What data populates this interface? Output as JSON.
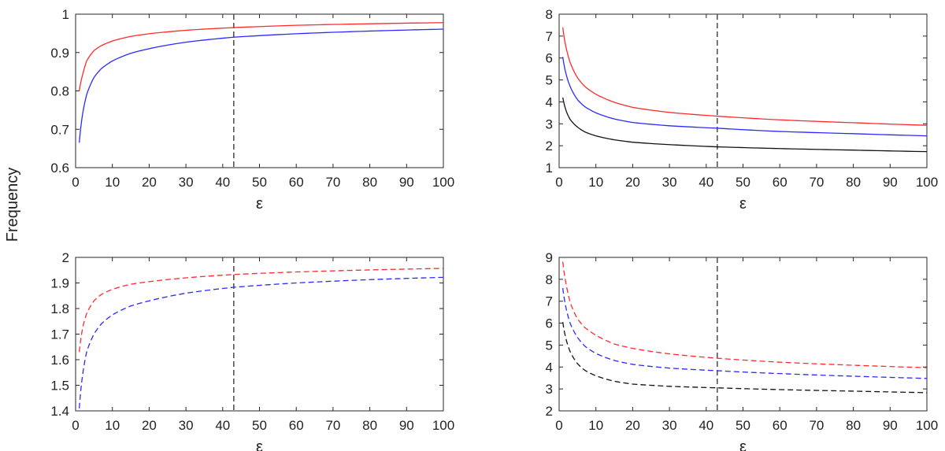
{
  "figure": {
    "ylabel": "Frequency"
  },
  "colors": {
    "red": "#ff2a2a",
    "blue": "#2a2aff",
    "black": "#111111",
    "marker": "#555555",
    "axis": "#262626"
  },
  "chart_data": [
    {
      "type": "line",
      "panel": "top-left",
      "xlabel": "ε",
      "ylabel": "",
      "xlim": [
        0,
        100
      ],
      "ylim": [
        0.6,
        1
      ],
      "xticks": [
        0,
        10,
        20,
        30,
        40,
        50,
        60,
        70,
        80,
        90,
        100
      ],
      "yticks": [
        0.6,
        0.7,
        0.8,
        0.9,
        1
      ],
      "ytick_labels": [
        "0.6",
        "0.7",
        "0.8",
        "0.9",
        "1"
      ],
      "vline": 43,
      "series": [
        {
          "name": "red",
          "color": "red",
          "dash": "solid",
          "x": [
            1,
            2,
            3,
            5,
            7,
            10,
            15,
            20,
            30,
            43,
            60,
            80,
            100
          ],
          "values": [
            0.8,
            0.845,
            0.878,
            0.905,
            0.918,
            0.93,
            0.942,
            0.949,
            0.958,
            0.965,
            0.971,
            0.975,
            0.978
          ]
        },
        {
          "name": "blue",
          "color": "blue",
          "dash": "solid",
          "x": [
            1,
            2,
            3,
            5,
            7,
            10,
            15,
            20,
            30,
            43,
            60,
            80,
            100
          ],
          "values": [
            0.665,
            0.745,
            0.79,
            0.835,
            0.858,
            0.878,
            0.898,
            0.91,
            0.927,
            0.94,
            0.949,
            0.956,
            0.961
          ]
        }
      ]
    },
    {
      "type": "line",
      "panel": "top-right",
      "xlabel": "ε",
      "ylabel": "",
      "xlim": [
        0,
        100
      ],
      "ylim": [
        1,
        8
      ],
      "xticks": [
        0,
        10,
        20,
        30,
        40,
        50,
        60,
        70,
        80,
        90,
        100
      ],
      "yticks": [
        1,
        2,
        3,
        4,
        5,
        6,
        7,
        8
      ],
      "ytick_labels": [
        "1",
        "2",
        "3",
        "4",
        "5",
        "6",
        "7",
        "8"
      ],
      "vline": 43,
      "series": [
        {
          "name": "red",
          "color": "red",
          "dash": "solid",
          "x": [
            1,
            2,
            3,
            5,
            7,
            10,
            15,
            20,
            30,
            43,
            60,
            80,
            100
          ],
          "values": [
            7.4,
            6.4,
            5.8,
            5.1,
            4.7,
            4.35,
            3.98,
            3.75,
            3.52,
            3.35,
            3.18,
            3.05,
            2.93
          ]
        },
        {
          "name": "blue",
          "color": "blue",
          "dash": "solid",
          "x": [
            1,
            2,
            3,
            5,
            7,
            10,
            15,
            20,
            30,
            43,
            60,
            80,
            100
          ],
          "values": [
            6.05,
            5.2,
            4.7,
            4.1,
            3.78,
            3.5,
            3.22,
            3.06,
            2.91,
            2.8,
            2.65,
            2.55,
            2.45
          ]
        },
        {
          "name": "black",
          "color": "black",
          "dash": "solid",
          "x": [
            1,
            2,
            3,
            5,
            7,
            10,
            15,
            20,
            30,
            43,
            60,
            80,
            100
          ],
          "values": [
            4.2,
            3.55,
            3.2,
            2.85,
            2.63,
            2.45,
            2.27,
            2.16,
            2.05,
            1.95,
            1.87,
            1.8,
            1.73
          ]
        }
      ]
    },
    {
      "type": "line",
      "panel": "bottom-left",
      "xlabel": "ε",
      "ylabel": "",
      "xlim": [
        0,
        100
      ],
      "ylim": [
        1.4,
        2
      ],
      "xticks": [
        0,
        10,
        20,
        30,
        40,
        50,
        60,
        70,
        80,
        90,
        100
      ],
      "yticks": [
        1.4,
        1.5,
        1.6,
        1.7,
        1.8,
        1.9,
        2
      ],
      "ytick_labels": [
        "1.4",
        "1.5",
        "1.6",
        "1.7",
        "1.8",
        "1.9",
        "2"
      ],
      "vline": 43,
      "series": [
        {
          "name": "red",
          "color": "red",
          "dash": "dashed",
          "x": [
            1,
            2,
            3,
            5,
            7,
            10,
            15,
            20,
            30,
            43,
            60,
            80,
            100
          ],
          "values": [
            1.63,
            1.73,
            1.78,
            1.83,
            1.855,
            1.875,
            1.895,
            1.905,
            1.92,
            1.933,
            1.943,
            1.951,
            1.957
          ]
        },
        {
          "name": "blue",
          "color": "blue",
          "dash": "dashed",
          "x": [
            1,
            2,
            3,
            5,
            7,
            10,
            15,
            20,
            30,
            43,
            60,
            80,
            100
          ],
          "values": [
            1.41,
            1.55,
            1.63,
            1.7,
            1.74,
            1.775,
            1.81,
            1.83,
            1.86,
            1.883,
            1.9,
            1.913,
            1.922
          ]
        }
      ]
    },
    {
      "type": "line",
      "panel": "bottom-right",
      "xlabel": "ε",
      "ylabel": "",
      "xlim": [
        0,
        100
      ],
      "ylim": [
        2,
        9
      ],
      "xticks": [
        0,
        10,
        20,
        30,
        40,
        50,
        60,
        70,
        80,
        90,
        100
      ],
      "yticks": [
        2,
        3,
        4,
        5,
        6,
        7,
        8,
        9
      ],
      "ytick_labels": [
        "2",
        "3",
        "4",
        "5",
        "6",
        "7",
        "8",
        "9"
      ],
      "vline": 43,
      "series": [
        {
          "name": "red",
          "color": "red",
          "dash": "dashed",
          "x": [
            1,
            2,
            3,
            5,
            7,
            10,
            15,
            20,
            30,
            43,
            60,
            80,
            100
          ],
          "values": [
            8.8,
            7.7,
            6.95,
            6.2,
            5.8,
            5.45,
            5.05,
            4.85,
            4.6,
            4.4,
            4.22,
            4.08,
            3.97
          ]
        },
        {
          "name": "blue",
          "color": "blue",
          "dash": "dashed",
          "x": [
            1,
            2,
            3,
            5,
            7,
            10,
            15,
            20,
            30,
            43,
            60,
            80,
            100
          ],
          "values": [
            7.6,
            6.6,
            6.0,
            5.35,
            4.95,
            4.62,
            4.3,
            4.12,
            3.95,
            3.83,
            3.7,
            3.58,
            3.48
          ]
        },
        {
          "name": "black",
          "color": "black",
          "dash": "dashed",
          "x": [
            1,
            2,
            3,
            5,
            7,
            10,
            15,
            20,
            30,
            43,
            60,
            80,
            100
          ],
          "values": [
            6.05,
            5.2,
            4.7,
            4.15,
            3.85,
            3.6,
            3.35,
            3.22,
            3.12,
            3.05,
            2.97,
            2.9,
            2.83
          ]
        }
      ]
    }
  ]
}
